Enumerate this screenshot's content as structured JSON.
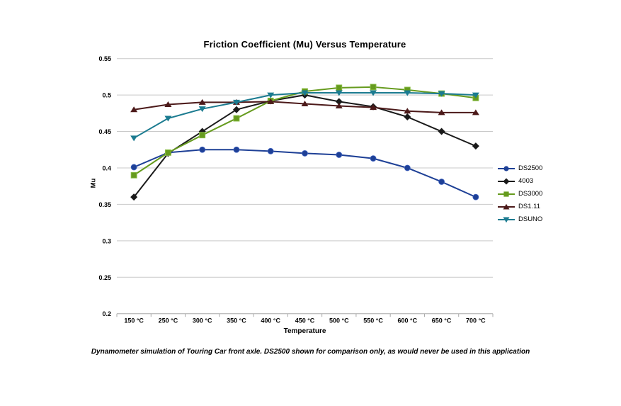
{
  "page": {
    "background": "#FFFFFF"
  },
  "caption": "Dynamometer simulation of Touring Car front axle. DS2500 shown for comparison only, as would never be used in this application",
  "chart_data": {
    "type": "line",
    "title": "Friction Coefficient (Mu) Versus Temperature",
    "xlabel": "Temperature",
    "ylabel": "Mu",
    "ylim": [
      0.2,
      0.55
    ],
    "yticks": [
      0.55,
      0.5,
      0.45,
      0.4,
      0.35,
      0.3,
      0.25,
      0.2
    ],
    "ytick_labels": [
      "0.55",
      "0.5",
      "0.45",
      "0.4",
      "0.35",
      "0.3",
      "0.25",
      "0.2"
    ],
    "grid": true,
    "legend_position": "right",
    "categories": [
      "150 °C",
      "250 °C",
      "300 °C",
      "350 °C",
      "400 °C",
      "450 °C",
      "500 °C",
      "550 °C",
      "600 °C",
      "650 °C",
      "700 °C"
    ],
    "series": [
      {
        "name": "DS2500",
        "marker": "circle",
        "color": "#1E4096",
        "values": [
          0.401,
          0.421,
          0.425,
          0.425,
          0.423,
          0.42,
          0.418,
          0.413,
          0.4,
          0.381,
          0.36
        ]
      },
      {
        "name": "4003",
        "marker": "diamond",
        "color": "#1A1A1A",
        "values": [
          0.36,
          0.42,
          0.45,
          0.48,
          0.492,
          0.5,
          0.491,
          0.484,
          0.47,
          0.45,
          0.43
        ]
      },
      {
        "name": "DS3000",
        "marker": "square",
        "color": "#669B1E",
        "values": [
          0.39,
          0.421,
          0.445,
          0.468,
          0.492,
          0.505,
          0.51,
          0.511,
          0.507,
          0.502,
          0.496
        ]
      },
      {
        "name": "DS1.11",
        "marker": "triangle-up",
        "color": "#4C1A1A",
        "values": [
          0.48,
          0.487,
          0.49,
          0.49,
          0.491,
          0.488,
          0.485,
          0.483,
          0.478,
          0.476,
          0.476
        ]
      },
      {
        "name": "DSUNO",
        "marker": "triangle-down",
        "color": "#1B7B90",
        "values": [
          0.441,
          0.468,
          0.481,
          0.49,
          0.5,
          0.503,
          0.503,
          0.503,
          0.503,
          0.502,
          0.5
        ]
      }
    ],
    "colors": {
      "gridline": "#C9C9C9",
      "axis": "#A8A8A8",
      "text": "#000000"
    }
  }
}
